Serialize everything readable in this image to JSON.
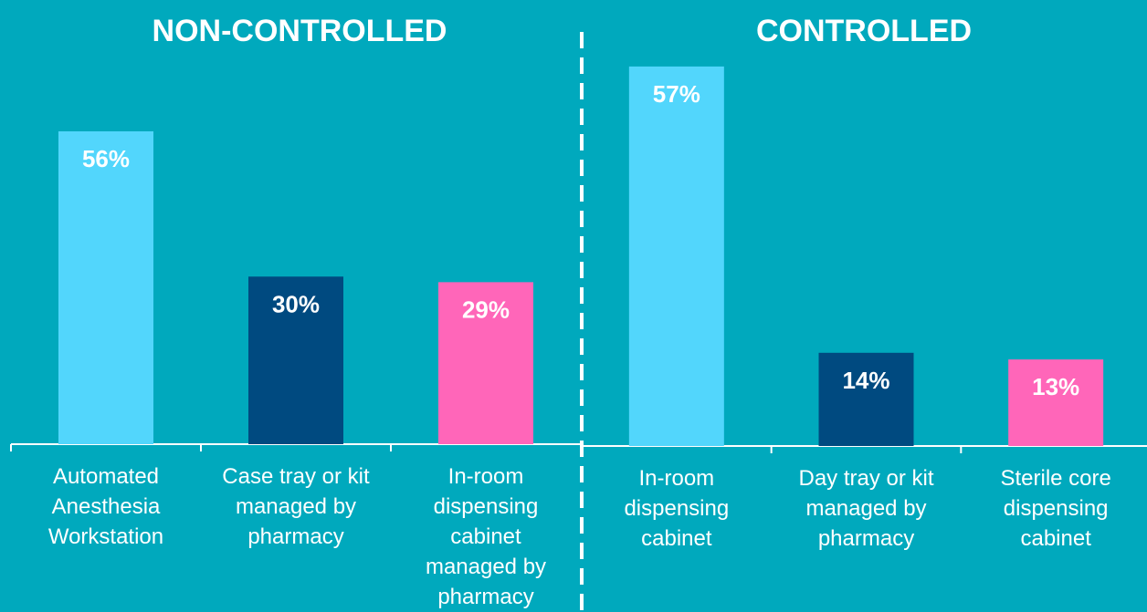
{
  "chart_data": [
    {
      "type": "bar",
      "title": "NON-CONTROLLED",
      "categories": [
        "Automated Anesthesia Workstation",
        "Case tray or kit managed by pharmacy",
        "In-room dispensing cabinet managed by pharmacy"
      ],
      "values": [
        56,
        30,
        29
      ],
      "value_labels": [
        "56%",
        "30%",
        "29%"
      ],
      "colors": [
        "#52d6fc",
        "#004a80",
        "#ff66b9"
      ],
      "ylim": [
        0,
        70
      ]
    },
    {
      "type": "bar",
      "title": "CONTROLLED",
      "categories": [
        "In-room dispensing cabinet",
        "Day tray or kit managed by pharmacy",
        "Sterile core dispensing cabinet"
      ],
      "values": [
        57,
        14,
        13
      ],
      "value_labels": [
        "57%",
        "14%",
        "13%"
      ],
      "colors": [
        "#52d6fc",
        "#004a80",
        "#ff66b9"
      ],
      "ylim": [
        0,
        60
      ]
    }
  ]
}
